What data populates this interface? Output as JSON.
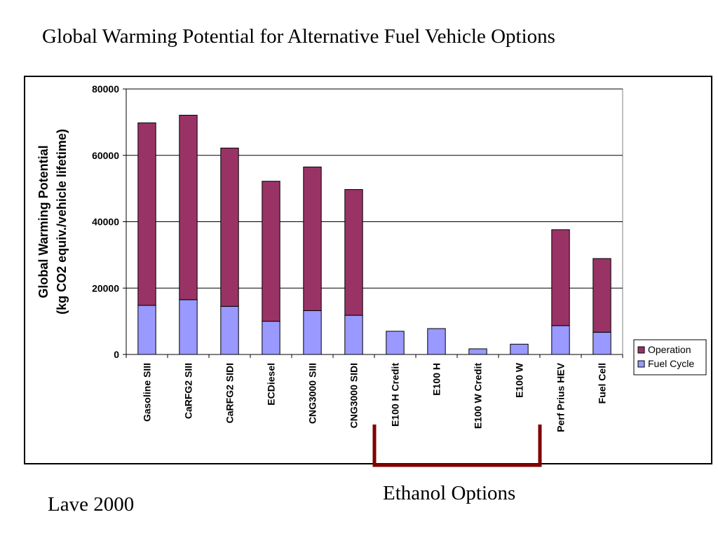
{
  "slide": {
    "title": "Global Warming Potential for Alternative Fuel Vehicle Options",
    "source": "Lave 2000",
    "annotation": "Ethanol Options"
  },
  "colors": {
    "operation": "#993366",
    "fuel_cycle": "#9999FF",
    "bracket": "#800000",
    "grid": "#000000"
  },
  "chart_data": {
    "type": "bar",
    "stacked": true,
    "title": "",
    "xlabel": "",
    "ylabel": "Global Warming Potential\n(kg CO2 equiv./vehicle lifetime)",
    "ylabel_lines": [
      "Global Warming Potential",
      "(kg CO2 equiv./vehicle lifetime)"
    ],
    "ylim": [
      0,
      80000
    ],
    "yticks": [
      0,
      20000,
      40000,
      60000,
      80000
    ],
    "ytick_labels": [
      "0",
      "20000",
      "40000",
      "60000",
      "80000"
    ],
    "grid": true,
    "legend_position": "right",
    "categories": [
      "Gasoline SIII",
      "CaRFG2 SIII",
      "CaRFG2 SIDI",
      "ECDiesel",
      "CNG3000 SIII",
      "CNG3000 SIDI",
      "E100 H Credit",
      "E100 H",
      "E100 W Credit",
      "E100 W",
      "Perf Prius HEV",
      "Fuel Cell"
    ],
    "series": [
      {
        "name": "Fuel Cycle",
        "values": [
          14800,
          16500,
          14500,
          10000,
          13200,
          11800,
          7000,
          7800,
          1700,
          3100,
          8700,
          6700
        ]
      },
      {
        "name": "Operation",
        "values": [
          55000,
          55600,
          47700,
          42200,
          43300,
          37900,
          0,
          0,
          0,
          0,
          28900,
          22200
        ]
      }
    ],
    "legend": [
      "Operation",
      "Fuel Cycle"
    ],
    "bracket_range": [
      "E100 H Credit",
      "E100 W"
    ]
  }
}
